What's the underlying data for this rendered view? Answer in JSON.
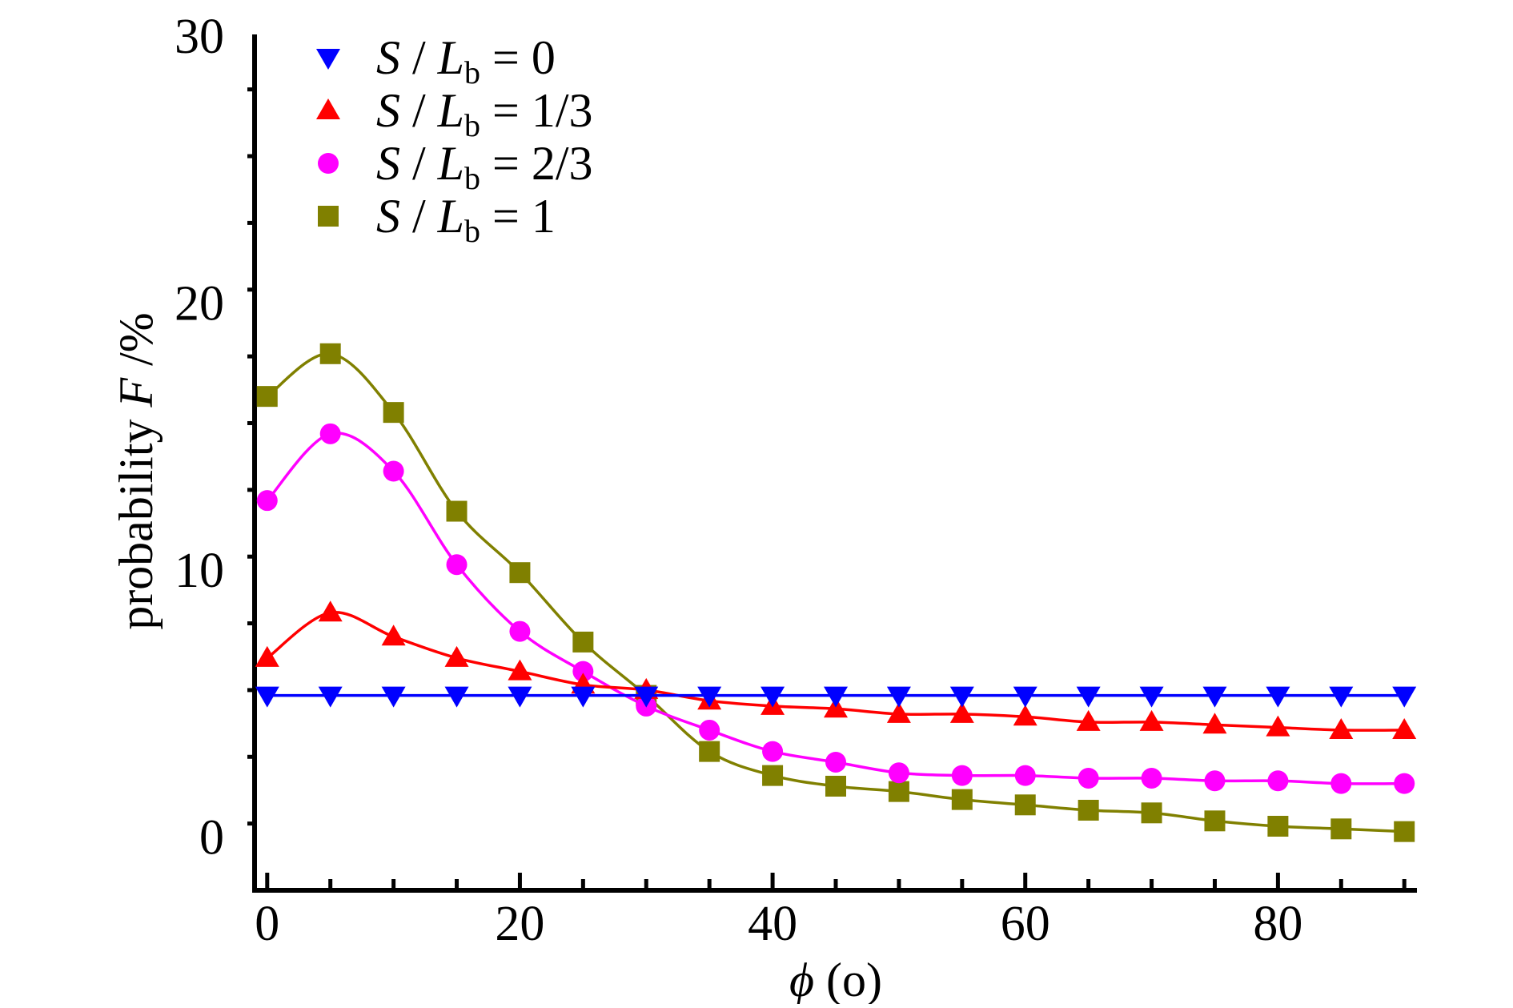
{
  "chart_data": {
    "type": "line",
    "x": [
      0,
      5,
      10,
      15,
      20,
      25,
      30,
      35,
      40,
      45,
      50,
      55,
      60,
      65,
      70,
      75,
      80,
      85,
      90
    ],
    "xlim": [
      -1,
      91
    ],
    "ylim": [
      -2,
      30
    ],
    "xticks": [
      0,
      20,
      40,
      60,
      80
    ],
    "yticks": [
      0,
      10,
      20,
      30
    ],
    "xlabel": {
      "symbol": "ϕ",
      "rest": " (o)"
    },
    "ylabel": {
      "prefix": "probability ",
      "symbol": "F",
      "rest": " /%"
    },
    "legend_position": "top-left",
    "series": [
      {
        "name": "S / Lb = 0",
        "label": {
          "S": "S",
          "slash": " / ",
          "L": "L",
          "sub": "b",
          "eq": " = ",
          "val": "0"
        },
        "color": "#0000ff",
        "marker": "triangle-down",
        "values": [
          5.3,
          5.3,
          5.3,
          5.3,
          5.3,
          5.3,
          5.3,
          5.3,
          5.3,
          5.3,
          5.3,
          5.3,
          5.3,
          5.3,
          5.3,
          5.3,
          5.3,
          5.3,
          5.3
        ]
      },
      {
        "name": "S / Lb = 1/3",
        "label": {
          "S": "S",
          "slash": " / ",
          "L": "L",
          "sub": "b",
          "eq": " = ",
          "val": "1/3"
        },
        "color": "#ff0000",
        "marker": "triangle-up",
        "values": [
          6.7,
          8.4,
          7.5,
          6.7,
          6.2,
          5.7,
          5.5,
          5.1,
          4.9,
          4.8,
          4.6,
          4.6,
          4.5,
          4.3,
          4.3,
          4.2,
          4.1,
          4.0,
          4.0
        ]
      },
      {
        "name": "S / Lb = 2/3",
        "label": {
          "S": "S",
          "slash": " / ",
          "L": "L",
          "sub": "b",
          "eq": " = ",
          "val": "2/3"
        },
        "color": "#ff00ff",
        "marker": "circle",
        "values": [
          12.6,
          15.1,
          13.7,
          10.2,
          7.7,
          6.2,
          4.9,
          4.0,
          3.2,
          2.8,
          2.4,
          2.3,
          2.3,
          2.2,
          2.2,
          2.1,
          2.1,
          2.0,
          2.0
        ]
      },
      {
        "name": "S / Lb = 1",
        "label": {
          "S": "S",
          "slash": " / ",
          "L": "L",
          "sub": "b",
          "eq": " = ",
          "val": "1"
        },
        "color": "#808000",
        "marker": "square",
        "values": [
          16.5,
          18.1,
          15.9,
          12.2,
          9.9,
          7.3,
          5.3,
          3.2,
          2.3,
          1.9,
          1.7,
          1.4,
          1.2,
          1.0,
          0.9,
          0.6,
          0.4,
          0.3,
          0.2
        ]
      }
    ]
  }
}
